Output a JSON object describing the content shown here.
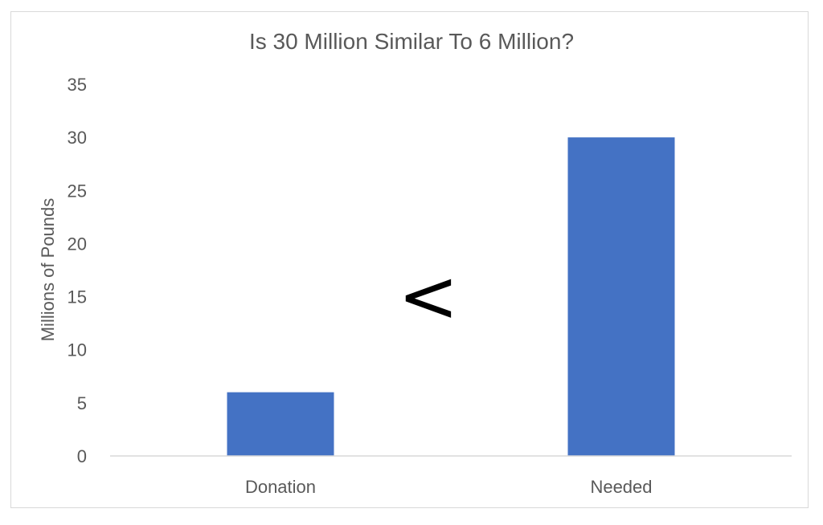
{
  "chart_data": {
    "type": "bar",
    "title": "Is 30 Million Similar To 6 Million?",
    "xlabel": "",
    "ylabel": "Millions of Pounds",
    "categories": [
      "Donation",
      "Needed"
    ],
    "values": [
      6,
      30
    ],
    "ylim": [
      0,
      35
    ],
    "yticks": [
      0,
      5,
      10,
      15,
      20,
      25,
      30,
      35
    ],
    "grid": false,
    "legend": "none",
    "bar_color": "#4472c4",
    "annotations": [
      {
        "text": "<"
      }
    ]
  }
}
